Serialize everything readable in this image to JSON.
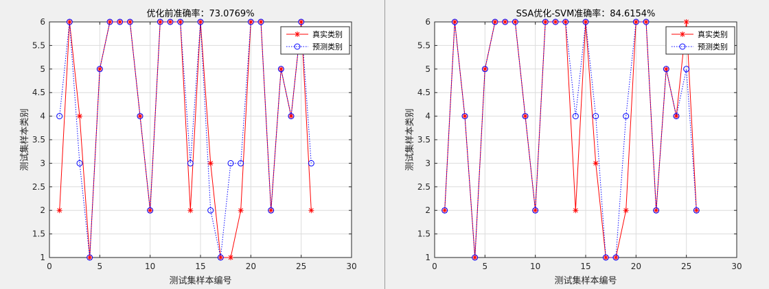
{
  "chart_data": [
    {
      "type": "line",
      "title": "优化前准确率：73.0769%",
      "xlabel": "测试集样本编号",
      "ylabel": "测试集样本类别",
      "xlim": [
        0,
        30
      ],
      "ylim": [
        1,
        6
      ],
      "xticks": [
        "0",
        "5",
        "10",
        "15",
        "20",
        "25",
        "30"
      ],
      "yticks": [
        "1",
        "1.5",
        "2",
        "2.5",
        "3",
        "3.5",
        "4",
        "4.5",
        "5",
        "5.5",
        "6"
      ],
      "grid": true,
      "legend_position": "top-right",
      "x": [
        1,
        2,
        3,
        4,
        5,
        6,
        7,
        8,
        9,
        10,
        11,
        12,
        13,
        14,
        15,
        16,
        17,
        18,
        19,
        20,
        21,
        22,
        23,
        24,
        25,
        26
      ],
      "series": [
        {
          "name": "真实类别",
          "color": "#ff0000",
          "marker": "asterisk",
          "line": "solid",
          "values": [
            2,
            6,
            4,
            1,
            5,
            6,
            6,
            6,
            4,
            2,
            6,
            6,
            6,
            2,
            6,
            3,
            1,
            1,
            2,
            6,
            6,
            2,
            5,
            4,
            6,
            2
          ]
        },
        {
          "name": "预测类别",
          "color": "#0000ff",
          "marker": "circle",
          "line": "dotted",
          "values": [
            4,
            6,
            3,
            1,
            5,
            6,
            6,
            6,
            4,
            2,
            6,
            6,
            6,
            3,
            6,
            2,
            1,
            3,
            3,
            6,
            6,
            2,
            5,
            4,
            6,
            3
          ]
        }
      ]
    },
    {
      "type": "line",
      "title": "SSA优化-SVM准确率：84.6154%",
      "xlabel": "测试集样本编号",
      "ylabel": "测试集样本类别",
      "xlim": [
        0,
        30
      ],
      "ylim": [
        1,
        6
      ],
      "xticks": [
        "0",
        "5",
        "10",
        "15",
        "20",
        "25",
        "30"
      ],
      "yticks": [
        "1",
        "1.5",
        "2",
        "2.5",
        "3",
        "3.5",
        "4",
        "4.5",
        "5",
        "5.5",
        "6"
      ],
      "grid": true,
      "legend_position": "top-right",
      "x": [
        1,
        2,
        3,
        4,
        5,
        6,
        7,
        8,
        9,
        10,
        11,
        12,
        13,
        14,
        15,
        16,
        17,
        18,
        19,
        20,
        21,
        22,
        23,
        24,
        25,
        26
      ],
      "series": [
        {
          "name": "真实类别",
          "color": "#ff0000",
          "marker": "asterisk",
          "line": "solid",
          "values": [
            2,
            6,
            4,
            1,
            5,
            6,
            6,
            6,
            4,
            2,
            6,
            6,
            6,
            2,
            6,
            3,
            1,
            1,
            2,
            6,
            6,
            2,
            5,
            4,
            6,
            2
          ]
        },
        {
          "name": "预测类别",
          "color": "#0000ff",
          "marker": "circle",
          "line": "dotted",
          "values": [
            2,
            6,
            4,
            1,
            5,
            6,
            6,
            6,
            4,
            2,
            6,
            6,
            6,
            4,
            6,
            4,
            1,
            1,
            4,
            6,
            6,
            2,
            5,
            4,
            5,
            2
          ]
        }
      ]
    }
  ]
}
